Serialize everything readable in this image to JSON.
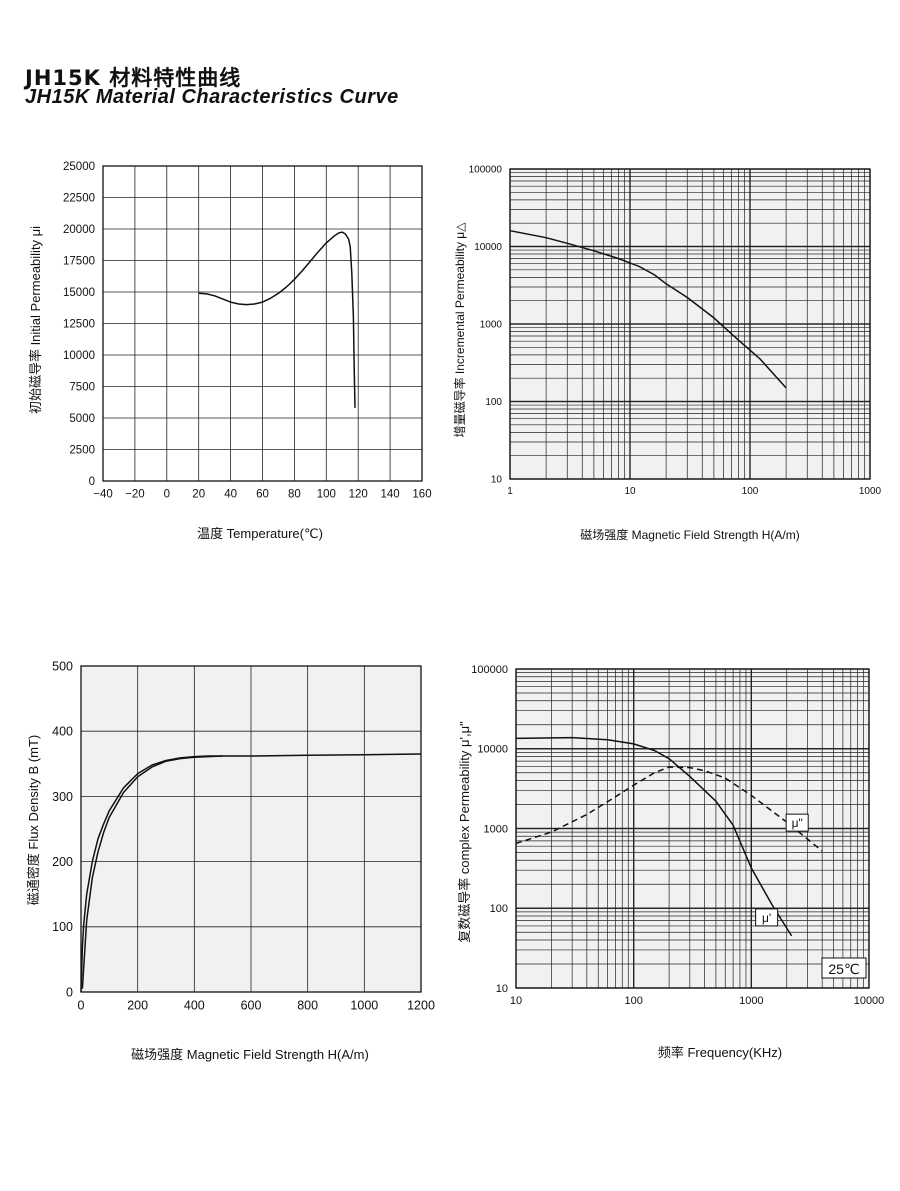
{
  "header": {
    "title_zh": "JH15K 材料特性曲线",
    "title_en": "JH15K  Material Characteristics Curve"
  },
  "chart_data": [
    {
      "type": "line",
      "ylabel": "初始磁导率 Initial Permeability μi",
      "xlabel": "温度 Temperature(℃)",
      "xlim": [
        -40,
        160
      ],
      "ylim": [
        0,
        25000
      ],
      "x_tick_labels": [
        "−40",
        "−20",
        "0",
        "20",
        "40",
        "60",
        "80",
        "100",
        "120",
        "140",
        "160"
      ],
      "y_tick_labels": [
        "0",
        "2500",
        "5000",
        "7500",
        "10000",
        "12500",
        "15000",
        "17500",
        "20000",
        "22500",
        "25000"
      ],
      "grid": true,
      "series": [
        {
          "x": [
            20,
            25,
            30,
            35,
            40,
            45,
            50,
            55,
            60,
            65,
            70,
            75,
            80,
            85,
            90,
            95,
            100,
            105,
            108,
            110,
            112,
            114,
            115,
            116,
            117,
            117.5,
            118
          ],
          "y": [
            14900,
            14850,
            14700,
            14450,
            14200,
            14050,
            14000,
            14050,
            14200,
            14500,
            14900,
            15400,
            16000,
            16700,
            17450,
            18200,
            18900,
            19450,
            19700,
            19750,
            19600,
            19200,
            18600,
            16500,
            13000,
            9000,
            5800
          ]
        }
      ]
    },
    {
      "type": "line",
      "ylabel": "增量磁导率 Incremental Permeability μ△",
      "xlabel": "磁场强度 Magnetic Field Strength H(A/m)",
      "xscale": "log",
      "yscale": "log",
      "xlim": [
        1,
        1000
      ],
      "ylim": [
        10,
        100000
      ],
      "x_tick_labels": [
        "1",
        "10",
        "100",
        "1000"
      ],
      "y_tick_labels": [
        "10",
        "100",
        "1000",
        "10000",
        "100000"
      ],
      "grid": true,
      "series": [
        {
          "x": [
            1,
            2,
            3,
            5,
            8,
            12,
            16,
            20,
            30,
            50,
            80,
            120,
            200
          ],
          "y": [
            16000,
            13000,
            11000,
            8800,
            7000,
            5500,
            4300,
            3300,
            2200,
            1200,
            620,
            360,
            150
          ]
        }
      ]
    },
    {
      "type": "line",
      "ylabel": "磁通密度 Flux Density B (mT)",
      "xlabel": "磁场强度 Magnetic Field Strength H(A/m)",
      "xlim": [
        0,
        1200
      ],
      "ylim": [
        0,
        500
      ],
      "x_tick_labels": [
        "0",
        "200",
        "400",
        "600",
        "800",
        "1000",
        "1200"
      ],
      "y_tick_labels": [
        "0",
        "100",
        "200",
        "300",
        "400",
        "500"
      ],
      "grid": true,
      "series": [
        {
          "x": [
            5,
            10,
            20,
            40,
            60,
            80,
            100,
            150,
            200,
            250,
            300,
            350,
            400,
            500,
            600,
            800,
            1000,
            1200
          ],
          "y": [
            5,
            40,
            110,
            175,
            215,
            245,
            268,
            306,
            330,
            345,
            354,
            358,
            360,
            362,
            362,
            363,
            364,
            365
          ]
        },
        {
          "x": [
            0,
            5,
            10,
            20,
            40,
            60,
            80,
            100,
            150,
            200,
            250,
            300,
            350,
            400,
            450,
            500
          ],
          "y": [
            0,
            70,
            105,
            150,
            200,
            235,
            258,
            278,
            313,
            335,
            348,
            355,
            359,
            361,
            362,
            362
          ]
        }
      ]
    },
    {
      "type": "line",
      "ylabel": "复数磁导率 complex Permeability μ',μ\"",
      "xlabel": "频率  Frequency(KHz)",
      "xscale": "log",
      "yscale": "log",
      "xlim": [
        10,
        10000
      ],
      "ylim": [
        10,
        100000
      ],
      "x_tick_labels": [
        "10",
        "100",
        "1000",
        "10000"
      ],
      "y_tick_labels": [
        "10",
        "100",
        "1000",
        "10000",
        "100000"
      ],
      "grid": true,
      "annotation": "25℃",
      "series": [
        {
          "name": "μ'",
          "style": "solid",
          "x": [
            10,
            30,
            60,
            100,
            150,
            200,
            300,
            500,
            700,
            1000,
            1500,
            2200
          ],
          "y": [
            13500,
            13800,
            13000,
            11500,
            9500,
            7500,
            4500,
            2200,
            1100,
            320,
            110,
            45
          ]
        },
        {
          "name": "μ\"",
          "style": "dashed",
          "x": [
            10,
            20,
            40,
            70,
            100,
            150,
            200,
            300,
            400,
            600,
            1000,
            2000,
            4000
          ],
          "y": [
            650,
            900,
            1500,
            2500,
            3500,
            5000,
            5900,
            5800,
            5300,
            4300,
            2600,
            1200,
            520
          ]
        }
      ]
    }
  ]
}
